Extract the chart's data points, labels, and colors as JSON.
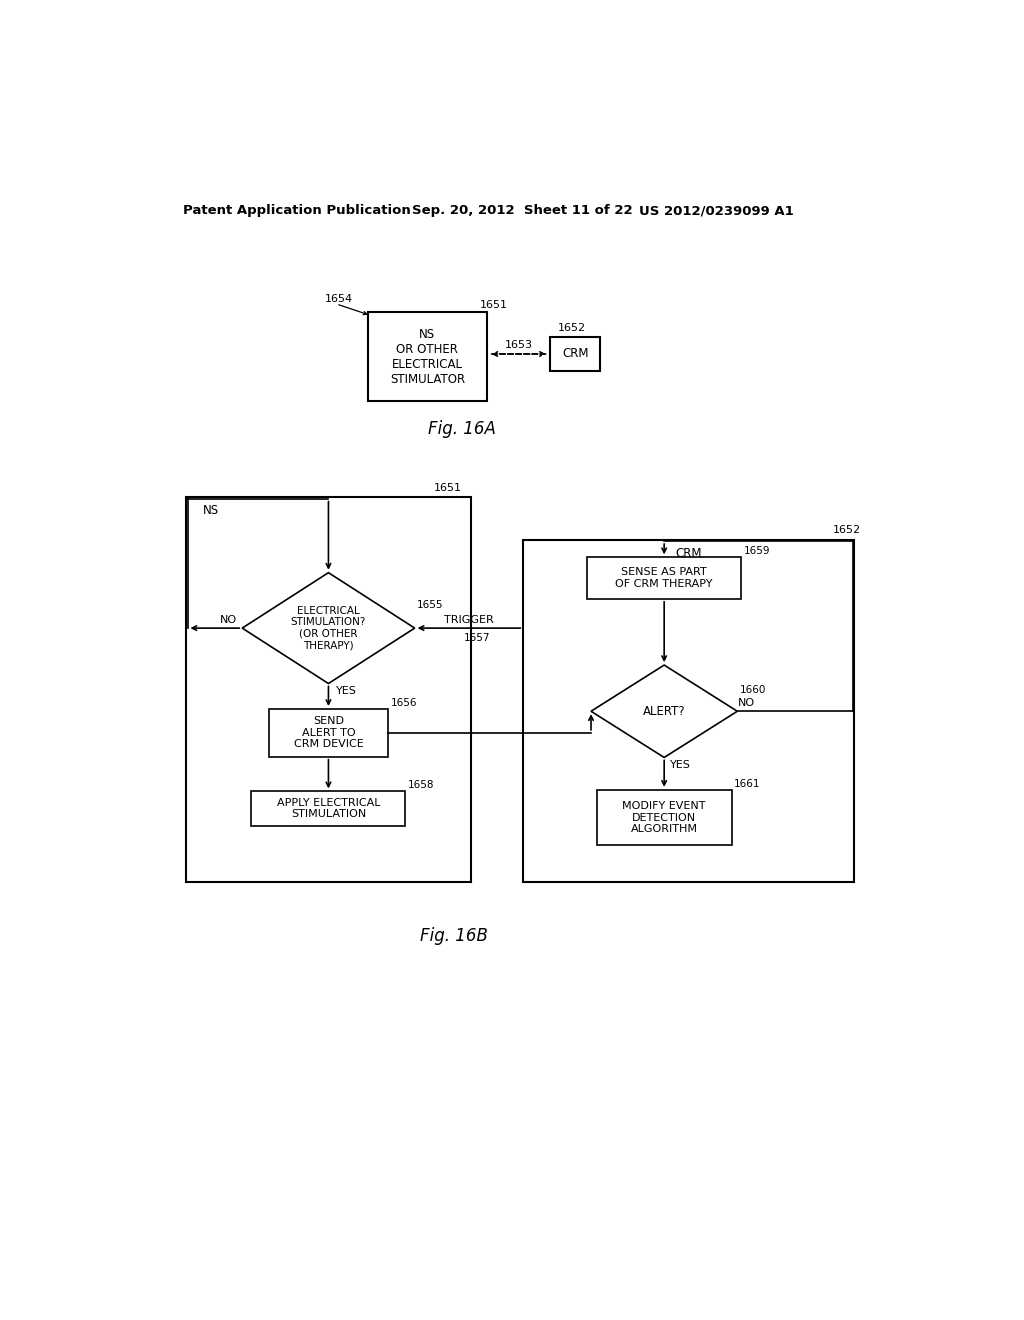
{
  "header_left": "Patent Application Publication",
  "header_mid": "Sep. 20, 2012  Sheet 11 of 22",
  "header_right": "US 2012/0239099 A1",
  "fig16a_label": "Fig. 16A",
  "fig16b_label": "Fig. 16B",
  "bg_color": "#ffffff",
  "line_color": "#000000",
  "label_1651_a": "1651",
  "label_1652_a": "1652",
  "label_1653": "1653",
  "label_1654": "1654",
  "ns_box_text": "NS\nOR OTHER\nELECTRICAL\nSTIMULATOR",
  "crm_box_text_a": "CRM",
  "label_1651_b": "1651",
  "label_1652_b": "1652",
  "label_1655": "1655",
  "label_1656": "1656",
  "label_1657": "1657",
  "label_1658": "1658",
  "label_1659": "1659",
  "label_1660": "1660",
  "label_1661": "1661",
  "ns_label_b": "NS",
  "crm_label_b": "CRM",
  "diamond_1655_text": "ELECTRICAL\nSTIMULATION?\n(OR OTHER\nTHERAPY)",
  "box_1656_text": "SEND\nALERT TO\nCRM DEVICE",
  "box_1658_text": "APPLY ELECTRICAL\nSTIMULATION",
  "box_1659_text": "SENSE AS PART\nOF CRM THERAPY",
  "diamond_1660_text": "ALERT?",
  "box_1661_text": "MODIFY EVENT\nDETECTION\nALGORITHM",
  "trigger_label": "TRIGGER",
  "no_label_left": "NO",
  "yes_label_1655": "YES",
  "no_label_right": "NO",
  "yes_label_1660": "YES"
}
